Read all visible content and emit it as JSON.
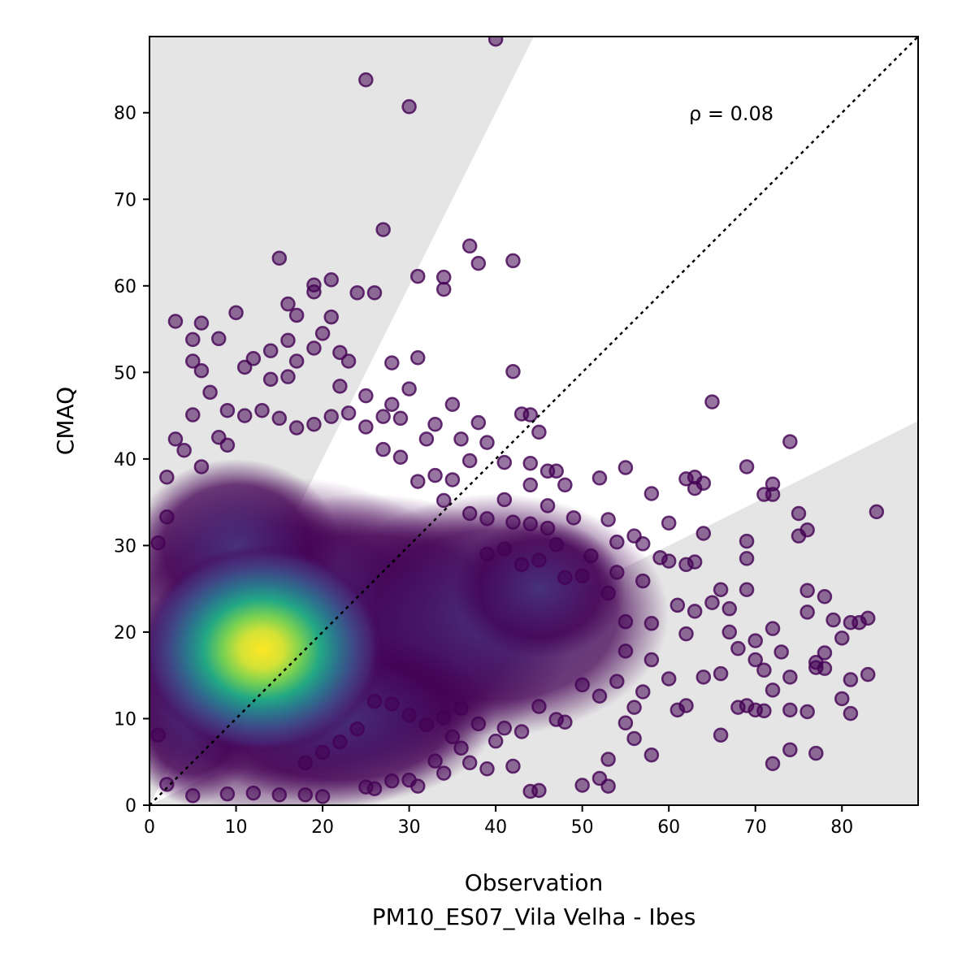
{
  "chart_data": {
    "type": "scatter",
    "xlabel": "Observation",
    "xlabel_sub": "PM10_ES07_Vila Velha - Ibes",
    "ylabel": "CMAQ",
    "xlim": [
      0,
      88.8
    ],
    "ylim": [
      0,
      88.8
    ],
    "x_ticks": [
      "0",
      "10",
      "20",
      "30",
      "40",
      "50",
      "60",
      "70",
      "80"
    ],
    "y_ticks": [
      "0",
      "10",
      "20",
      "30",
      "40",
      "50",
      "60",
      "70",
      "80"
    ],
    "annotation": "ρ = 0.08",
    "reference_line": "1:1",
    "shaded_band": "outside factor-of-2 of 1:1",
    "colormap": "viridis",
    "colors": {
      "band": "#e5e5e5",
      "low_density": "#440154",
      "high_density": "#fde725"
    },
    "outlier_points": [
      [
        40,
        88.5
      ],
      [
        25,
        83.8
      ],
      [
        30,
        80.7
      ],
      [
        27,
        66.5
      ],
      [
        37,
        64.6
      ],
      [
        38,
        62.6
      ],
      [
        42,
        62.9
      ],
      [
        15,
        63.2
      ],
      [
        31,
        61.1
      ],
      [
        34,
        61.0
      ],
      [
        34,
        59.6
      ],
      [
        24,
        59.2
      ],
      [
        26,
        59.2
      ],
      [
        19,
        60.1
      ],
      [
        19,
        59.3
      ],
      [
        21,
        60.7
      ],
      [
        16,
        57.9
      ],
      [
        17,
        56.6
      ],
      [
        21,
        56.4
      ],
      [
        10,
        56.9
      ],
      [
        3,
        55.9
      ],
      [
        6,
        55.7
      ],
      [
        5,
        53.8
      ],
      [
        8,
        53.9
      ],
      [
        16,
        53.7
      ],
      [
        20,
        54.5
      ],
      [
        19,
        52.8
      ],
      [
        14,
        52.5
      ],
      [
        12,
        51.6
      ],
      [
        11,
        50.6
      ],
      [
        17,
        51.3
      ],
      [
        22,
        52.3
      ],
      [
        23,
        51.3
      ],
      [
        28,
        51.1
      ],
      [
        31,
        51.7
      ],
      [
        42,
        50.1
      ],
      [
        6,
        50.2
      ],
      [
        5,
        51.3
      ],
      [
        14,
        49.2
      ],
      [
        16,
        49.5
      ],
      [
        22,
        48.4
      ],
      [
        25,
        47.3
      ],
      [
        28,
        46.3
      ],
      [
        30,
        48.1
      ],
      [
        35,
        46.3
      ],
      [
        33,
        44.0
      ],
      [
        38,
        44.2
      ],
      [
        43,
        45.2
      ],
      [
        44,
        45.1
      ],
      [
        45,
        43.1
      ],
      [
        39,
        41.9
      ],
      [
        36,
        42.3
      ],
      [
        37,
        39.8
      ],
      [
        41,
        39.6
      ],
      [
        44,
        39.5
      ],
      [
        44,
        37.0
      ],
      [
        46,
        38.6
      ],
      [
        47,
        38.6
      ],
      [
        48,
        37.0
      ],
      [
        52,
        37.8
      ],
      [
        55,
        39.0
      ],
      [
        58,
        36.0
      ],
      [
        62,
        37.7
      ],
      [
        63,
        37.9
      ],
      [
        63,
        36.6
      ],
      [
        64,
        37.2
      ],
      [
        69,
        39.1
      ],
      [
        71,
        35.9
      ],
      [
        72,
        37.1
      ],
      [
        72,
        35.9
      ],
      [
        74,
        42.0
      ],
      [
        75,
        33.7
      ],
      [
        75,
        31.1
      ],
      [
        76,
        31.8
      ],
      [
        84,
        33.9
      ],
      [
        65,
        46.6
      ],
      [
        60,
        32.6
      ],
      [
        64,
        31.4
      ],
      [
        59,
        28.6
      ],
      [
        62,
        27.8
      ],
      [
        63,
        28.1
      ],
      [
        69,
        30.5
      ],
      [
        69,
        28.5
      ],
      [
        76,
        24.8
      ],
      [
        78,
        24.1
      ],
      [
        79,
        21.4
      ],
      [
        80,
        19.3
      ],
      [
        81,
        21.1
      ],
      [
        82,
        21.1
      ],
      [
        83,
        21.6
      ],
      [
        83,
        15.1
      ],
      [
        81,
        14.5
      ],
      [
        80,
        12.3
      ],
      [
        81,
        10.6
      ],
      [
        74,
        11.0
      ],
      [
        77,
        6.0
      ],
      [
        74,
        6.4
      ],
      [
        72,
        4.8
      ],
      [
        76,
        10.8
      ],
      [
        71,
        10.9
      ],
      [
        70,
        11.0
      ],
      [
        69,
        11.5
      ],
      [
        66,
        8.1
      ],
      [
        61,
        11.0
      ],
      [
        58,
        5.8
      ],
      [
        56,
        7.7
      ],
      [
        55,
        9.5
      ],
      [
        53,
        5.3
      ],
      [
        53,
        2.2
      ],
      [
        52,
        3.1
      ],
      [
        50,
        2.3
      ],
      [
        44,
        1.6
      ],
      [
        45,
        1.7
      ],
      [
        42,
        4.5
      ],
      [
        39,
        4.2
      ],
      [
        37,
        4.9
      ],
      [
        36,
        6.6
      ],
      [
        35,
        7.9
      ],
      [
        34,
        3.7
      ],
      [
        33,
        5.1
      ],
      [
        31,
        2.2
      ],
      [
        30,
        2.9
      ],
      [
        28,
        2.8
      ],
      [
        26,
        1.9
      ],
      [
        25,
        2.1
      ],
      [
        20,
        1.0
      ],
      [
        18,
        1.2
      ],
      [
        15,
        1.2
      ],
      [
        12,
        1.4
      ],
      [
        9,
        1.3
      ],
      [
        5,
        1.1
      ],
      [
        2,
        2.4
      ],
      [
        1,
        8.1
      ],
      [
        67,
        20.0
      ],
      [
        68,
        18.1
      ],
      [
        70,
        16.8
      ],
      [
        71,
        15.6
      ],
      [
        73,
        17.7
      ],
      [
        74,
        14.8
      ],
      [
        77,
        15.9
      ],
      [
        78,
        17.6
      ],
      [
        66,
        15.2
      ],
      [
        64,
        14.8
      ],
      [
        62,
        19.8
      ],
      [
        60,
        14.6
      ],
      [
        58,
        16.8
      ],
      [
        57,
        13.1
      ],
      [
        56,
        11.3
      ],
      [
        55,
        21.2
      ],
      [
        54,
        26.9
      ],
      [
        53,
        24.5
      ],
      [
        57,
        25.9
      ],
      [
        60,
        28.2
      ],
      [
        66,
        24.9
      ],
      [
        67,
        22.7
      ],
      [
        69,
        24.9
      ],
      [
        70,
        19.0
      ],
      [
        72,
        20.4
      ],
      [
        76,
        22.3
      ],
      [
        77,
        16.5
      ],
      [
        78,
        15.8
      ],
      [
        72,
        13.3
      ],
      [
        68,
        11.3
      ],
      [
        62,
        11.5
      ],
      [
        63,
        22.4
      ],
      [
        65,
        23.4
      ],
      [
        61,
        23.1
      ],
      [
        58,
        21.0
      ],
      [
        55,
        17.8
      ],
      [
        54,
        14.3
      ],
      [
        52,
        12.6
      ],
      [
        50,
        13.9
      ],
      [
        48,
        9.6
      ],
      [
        47,
        9.9
      ],
      [
        45,
        11.4
      ],
      [
        43,
        8.5
      ],
      [
        41,
        8.9
      ],
      [
        40,
        7.4
      ],
      [
        38,
        9.4
      ],
      [
        36,
        11.2
      ],
      [
        34,
        10.1
      ],
      [
        32,
        9.3
      ],
      [
        30,
        10.4
      ],
      [
        28,
        11.7
      ],
      [
        26,
        12.0
      ],
      [
        24,
        8.8
      ],
      [
        22,
        7.3
      ],
      [
        20,
        6.1
      ],
      [
        18,
        4.9
      ],
      [
        8,
        42.5
      ],
      [
        7,
        47.7
      ],
      [
        9,
        45.6
      ],
      [
        5,
        45.1
      ],
      [
        4,
        41.0
      ],
      [
        3,
        42.3
      ],
      [
        2,
        33.3
      ],
      [
        1,
        30.3
      ],
      [
        2,
        37.9
      ],
      [
        6,
        39.1
      ],
      [
        27,
        41.1
      ],
      [
        29,
        40.2
      ],
      [
        32,
        42.3
      ],
      [
        34,
        35.2
      ],
      [
        39,
        33.1
      ],
      [
        41,
        35.3
      ],
      [
        42,
        32.7
      ],
      [
        46,
        34.6
      ],
      [
        49,
        33.2
      ],
      [
        51,
        28.8
      ],
      [
        47,
        30.1
      ],
      [
        46,
        32.0
      ],
      [
        44,
        32.5
      ],
      [
        53,
        33.0
      ],
      [
        56,
        31.1
      ],
      [
        57,
        30.2
      ],
      [
        54,
        30.4
      ],
      [
        50,
        26.5
      ],
      [
        48,
        26.3
      ],
      [
        45,
        28.3
      ],
      [
        43,
        27.8
      ],
      [
        41,
        29.6
      ],
      [
        39,
        29.0
      ],
      [
        37,
        33.7
      ],
      [
        35,
        37.6
      ],
      [
        33,
        38.1
      ],
      [
        31,
        37.4
      ],
      [
        29,
        44.7
      ],
      [
        27,
        44.9
      ],
      [
        25,
        43.7
      ],
      [
        23,
        45.3
      ],
      [
        21,
        44.9
      ],
      [
        19,
        44.0
      ],
      [
        17,
        43.6
      ],
      [
        15,
        44.7
      ],
      [
        13,
        45.6
      ],
      [
        11,
        45.0
      ],
      [
        9,
        41.6
      ]
    ]
  }
}
